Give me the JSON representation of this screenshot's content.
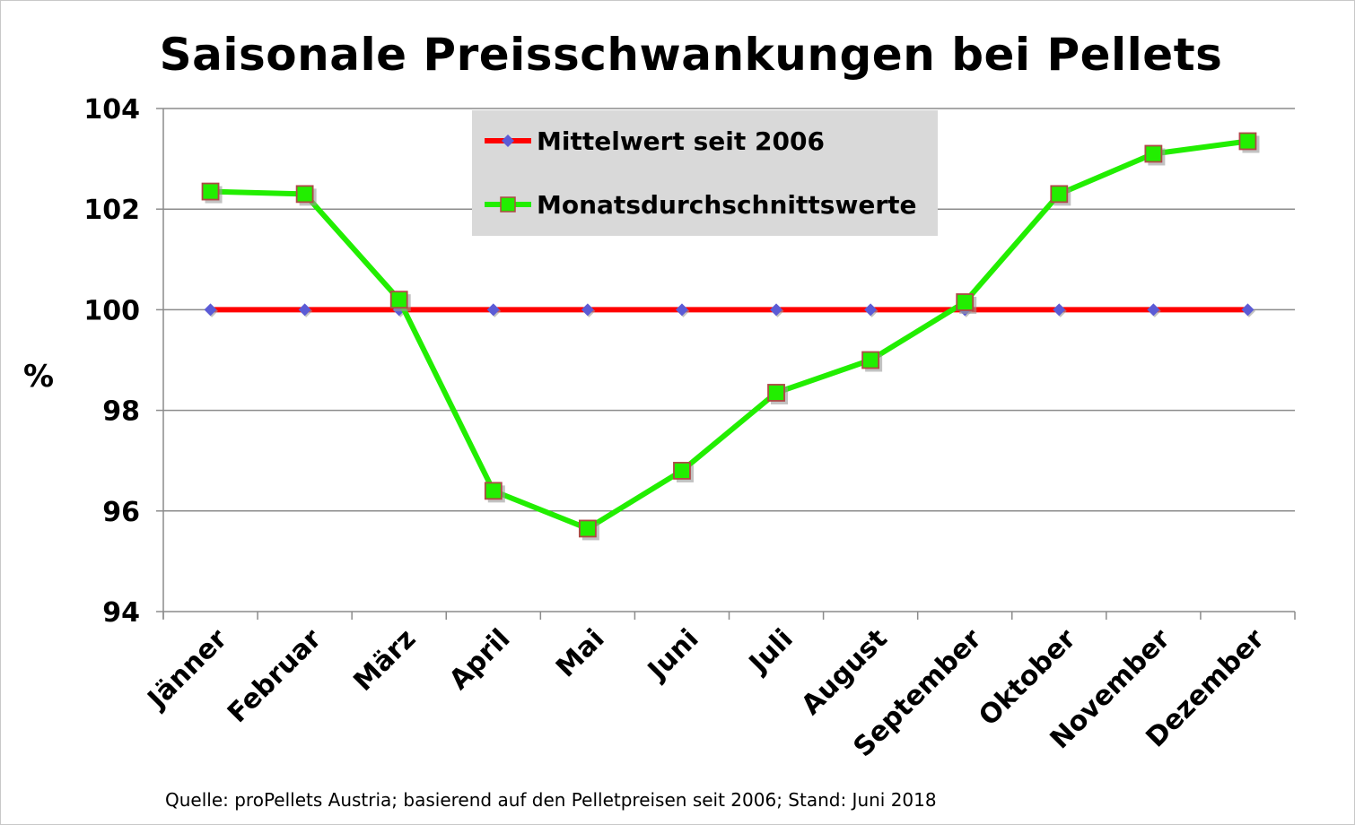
{
  "chart_data": {
    "type": "line",
    "title": "Saisonale Preisschwankungen bei Pellets",
    "ylabel": "%",
    "xlabel": "",
    "ylim": [
      94,
      104
    ],
    "yticks": [
      "94",
      "96",
      "98",
      "100",
      "102",
      "104"
    ],
    "grid": true,
    "legend_position": "top-center",
    "categories": [
      "Jänner",
      "Februar",
      "März",
      "April",
      "Mai",
      "Juni",
      "Juli",
      "August",
      "September",
      "Oktober",
      "November",
      "Dezember"
    ],
    "series": [
      {
        "name": "Mittelwert seit 2006",
        "color": "#ff0000",
        "marker": "diamond",
        "marker_color": "#5b5bd6",
        "values": [
          100,
          100,
          100,
          100,
          100,
          100,
          100,
          100,
          100,
          100,
          100,
          100
        ]
      },
      {
        "name": "Monatsdurchschnittswerte",
        "color": "#22ee00",
        "marker": "square",
        "marker_color": "#b04848",
        "values": [
          102.35,
          102.3,
          100.2,
          96.4,
          95.65,
          96.8,
          98.35,
          99.0,
          100.15,
          102.3,
          103.1,
          103.35
        ]
      }
    ],
    "source_note": "Quelle: proPellets Austria; basierend auf den Pelletpreisen seit 2006; Stand: Juni 2018"
  }
}
